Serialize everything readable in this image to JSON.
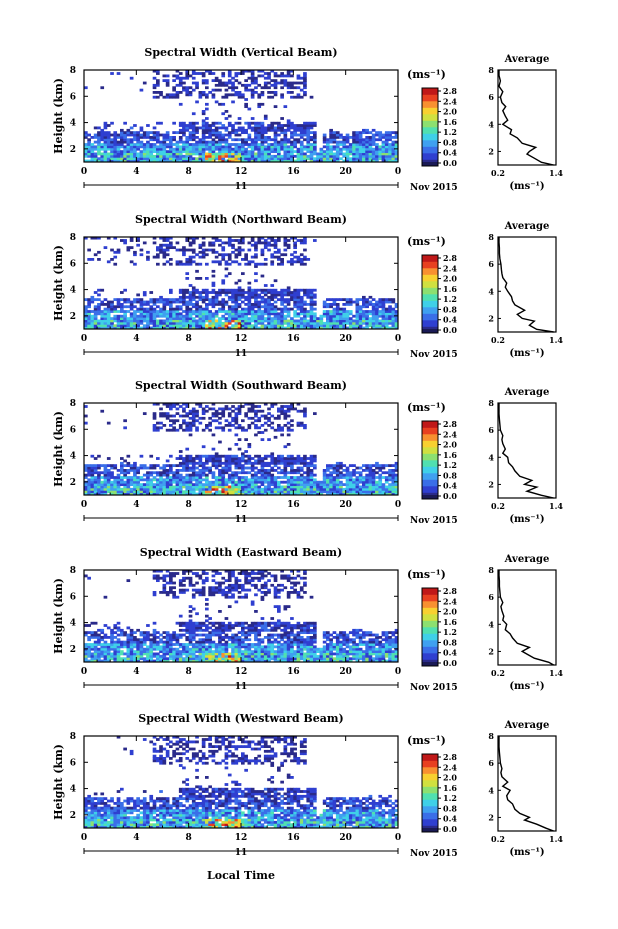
{
  "common": {
    "ylabel": "Height (km)",
    "xlabel": "Local Time",
    "x_ticks": [
      "0",
      "4",
      "8",
      "12",
      "16",
      "20",
      "0"
    ],
    "day_label": "11",
    "date_label": "Nov 2015",
    "colorbar_unit": "(ms⁻¹)",
    "colorbar_ticks": [
      "0.0",
      "0.4",
      "0.8",
      "1.2",
      "1.6",
      "2.0",
      "2.4",
      "2.8"
    ],
    "avg_title": "Average",
    "avg_x_ticks": [
      "0.2",
      "1.4"
    ],
    "avg_xlabel": "(ms⁻¹)",
    "avg_y_ticks": [
      "2",
      "4",
      "6",
      "8"
    ],
    "height_ticks": [
      "2",
      "4",
      "6",
      "8"
    ]
  },
  "colors": {
    "colormap": [
      "#2a2a8a",
      "#2f3fd0",
      "#3a6ee8",
      "#3fa0f0",
      "#3fd0e8",
      "#50e0b0",
      "#8ce070",
      "#d0e040",
      "#f8d030",
      "#f89030",
      "#e84020",
      "#c01818"
    ],
    "lowest_band": "#1a1a55"
  },
  "chart_data": [
    {
      "type": "heatmap",
      "title": "Spectral Width (Vertical Beam)",
      "xlim": [
        0,
        24
      ],
      "ylim": [
        1,
        8
      ],
      "zlim": [
        0,
        2.8
      ],
      "average_profile": {
        "xlim": [
          0.2,
          1.4
        ],
        "height": [
          1.0,
          1.2,
          1.5,
          1.8,
          2.0,
          2.3,
          2.6,
          3.0,
          3.3,
          3.6,
          4.0,
          4.3,
          4.6,
          5.0,
          5.3,
          5.6,
          6.0,
          6.4,
          6.8,
          7.2,
          7.6,
          8.0
        ],
        "width": [
          1.35,
          1.1,
          0.95,
          0.8,
          0.85,
          0.98,
          0.7,
          0.6,
          0.45,
          0.48,
          0.3,
          0.4,
          0.35,
          0.3,
          0.36,
          0.28,
          0.25,
          0.3,
          0.22,
          0.25,
          0.22,
          0.22
        ]
      }
    },
    {
      "type": "heatmap",
      "title": "Spectral Width (Northward Beam)",
      "xlim": [
        0,
        24
      ],
      "ylim": [
        1,
        8
      ],
      "zlim": [
        0,
        2.8
      ],
      "average_profile": {
        "xlim": [
          0.2,
          1.4
        ],
        "height": [
          1.0,
          1.2,
          1.5,
          1.8,
          2.0,
          2.3,
          2.6,
          3.0,
          3.3,
          3.6,
          4.0,
          4.3,
          4.6,
          5.0,
          5.3,
          5.6,
          6.0,
          6.4,
          6.8,
          7.2,
          7.6,
          8.0
        ],
        "width": [
          1.35,
          1.0,
          0.85,
          0.95,
          0.7,
          0.6,
          0.75,
          0.55,
          0.5,
          0.48,
          0.4,
          0.35,
          0.38,
          0.3,
          0.28,
          0.27,
          0.26,
          0.24,
          0.23,
          0.23,
          0.22,
          0.22
        ]
      }
    },
    {
      "type": "heatmap",
      "title": "Spectral Width (Southward Beam)",
      "xlim": [
        0,
        24
      ],
      "ylim": [
        1,
        8
      ],
      "zlim": [
        0,
        2.8
      ],
      "average_profile": {
        "xlim": [
          0.2,
          1.4
        ],
        "height": [
          1.0,
          1.2,
          1.5,
          1.8,
          2.0,
          2.3,
          2.6,
          3.0,
          3.3,
          3.6,
          4.0,
          4.3,
          4.6,
          5.0,
          5.3,
          5.6,
          6.0,
          6.4,
          6.8,
          7.2,
          7.6,
          8.0
        ],
        "width": [
          1.35,
          1.1,
          0.8,
          1.0,
          0.75,
          0.9,
          0.65,
          0.55,
          0.5,
          0.42,
          0.4,
          0.3,
          0.35,
          0.3,
          0.28,
          0.3,
          0.25,
          0.24,
          0.23,
          0.22,
          0.22,
          0.22
        ]
      }
    },
    {
      "type": "heatmap",
      "title": "Spectral Width (Eastward Beam)",
      "xlim": [
        0,
        24
      ],
      "ylim": [
        1,
        8
      ],
      "zlim": [
        0,
        2.8
      ],
      "average_profile": {
        "xlim": [
          0.2,
          1.4
        ],
        "height": [
          1.0,
          1.2,
          1.5,
          1.8,
          2.0,
          2.3,
          2.6,
          3.0,
          3.3,
          3.6,
          4.0,
          4.3,
          4.6,
          5.0,
          5.3,
          5.6,
          6.0,
          6.4,
          6.8,
          7.2,
          7.6,
          8.0
        ],
        "width": [
          1.35,
          1.25,
          0.95,
          0.8,
          0.7,
          0.85,
          0.6,
          0.5,
          0.45,
          0.35,
          0.38,
          0.3,
          0.32,
          0.28,
          0.26,
          0.3,
          0.25,
          0.24,
          0.23,
          0.23,
          0.22,
          0.22
        ]
      }
    },
    {
      "type": "heatmap",
      "title": "Spectral Width (Westward Beam)",
      "xlim": [
        0,
        24
      ],
      "ylim": [
        1,
        8
      ],
      "zlim": [
        0,
        2.8
      ],
      "average_profile": {
        "xlim": [
          0.2,
          1.4
        ],
        "height": [
          1.0,
          1.2,
          1.5,
          1.8,
          2.0,
          2.3,
          2.6,
          3.0,
          3.3,
          3.6,
          4.0,
          4.3,
          4.6,
          5.0,
          5.3,
          5.6,
          6.0,
          6.4,
          6.8,
          7.2,
          7.6,
          8.0
        ],
        "width": [
          1.35,
          1.2,
          1.0,
          0.75,
          0.85,
          0.65,
          0.55,
          0.5,
          0.4,
          0.38,
          0.45,
          0.3,
          0.4,
          0.28,
          0.26,
          0.28,
          0.25,
          0.24,
          0.23,
          0.22,
          0.22,
          0.22
        ]
      }
    }
  ]
}
